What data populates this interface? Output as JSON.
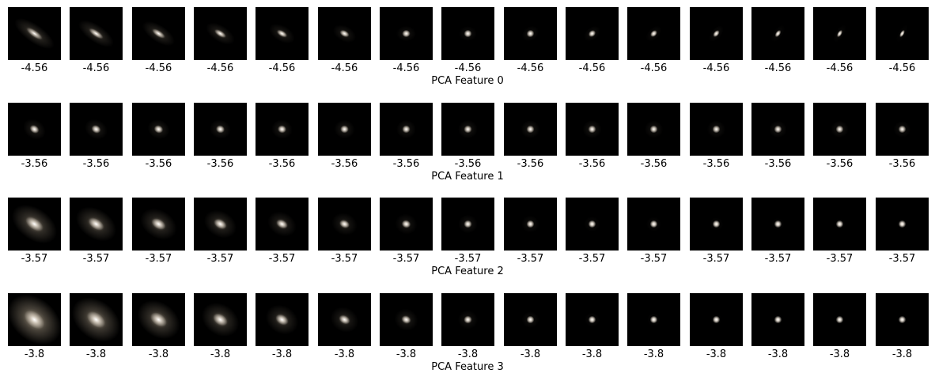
{
  "image": {
    "description_none": true
  },
  "colors": {
    "core": "#fff6ea",
    "halo": "#c9b9a0",
    "background": "#000000"
  },
  "rows": [
    {
      "title": "PCA Feature 0",
      "value": "-4.56",
      "cells": [
        {
          "elong": 2.6,
          "angle": 35,
          "core": 0.55,
          "halo": 0.35,
          "spread": 0.55
        },
        {
          "elong": 2.4,
          "angle": 34,
          "core": 0.6,
          "halo": 0.3,
          "spread": 0.5
        },
        {
          "elong": 2.2,
          "angle": 33,
          "core": 0.62,
          "halo": 0.28,
          "spread": 0.47
        },
        {
          "elong": 2.0,
          "angle": 32,
          "core": 0.65,
          "halo": 0.24,
          "spread": 0.43
        },
        {
          "elong": 1.8,
          "angle": 30,
          "core": 0.68,
          "halo": 0.2,
          "spread": 0.4
        },
        {
          "elong": 1.6,
          "angle": 28,
          "core": 0.7,
          "halo": 0.17,
          "spread": 0.37
        },
        {
          "elong": 1.3,
          "angle": 0,
          "core": 0.72,
          "halo": 0.14,
          "spread": 0.33
        },
        {
          "elong": 1.2,
          "angle": 0,
          "core": 0.74,
          "halo": 0.12,
          "spread": 0.31
        },
        {
          "elong": 1.3,
          "angle": -35,
          "core": 0.74,
          "halo": 0.11,
          "spread": 0.3
        },
        {
          "elong": 1.5,
          "angle": -40,
          "core": 0.75,
          "halo": 0.1,
          "spread": 0.29
        },
        {
          "elong": 1.7,
          "angle": -45,
          "core": 0.76,
          "halo": 0.09,
          "spread": 0.28
        },
        {
          "elong": 1.9,
          "angle": -50,
          "core": 0.77,
          "halo": 0.08,
          "spread": 0.27
        },
        {
          "elong": 2.1,
          "angle": -55,
          "core": 0.78,
          "halo": 0.07,
          "spread": 0.26
        },
        {
          "elong": 2.3,
          "angle": -58,
          "core": 0.79,
          "halo": 0.06,
          "spread": 0.25
        },
        {
          "elong": 2.5,
          "angle": -60,
          "core": 0.8,
          "halo": 0.05,
          "spread": 0.24
        }
      ]
    },
    {
      "title": "PCA Feature 1",
      "value": "-3.56",
      "cells": [
        {
          "elong": 1.3,
          "angle": 35,
          "core": 0.7,
          "halo": 0.2,
          "spread": 0.4
        },
        {
          "elong": 1.25,
          "angle": 30,
          "core": 0.7,
          "halo": 0.2,
          "spread": 0.4
        },
        {
          "elong": 1.2,
          "angle": 25,
          "core": 0.7,
          "halo": 0.19,
          "spread": 0.39
        },
        {
          "elong": 1.15,
          "angle": 20,
          "core": 0.7,
          "halo": 0.18,
          "spread": 0.38
        },
        {
          "elong": 1.1,
          "angle": 15,
          "core": 0.7,
          "halo": 0.18,
          "spread": 0.38
        },
        {
          "elong": 1.1,
          "angle": 10,
          "core": 0.7,
          "halo": 0.17,
          "spread": 0.37
        },
        {
          "elong": 1.05,
          "angle": 0,
          "core": 0.7,
          "halo": 0.16,
          "spread": 0.36
        },
        {
          "elong": 1.05,
          "angle": 0,
          "core": 0.7,
          "halo": 0.16,
          "spread": 0.36
        },
        {
          "elong": 1.05,
          "angle": 0,
          "core": 0.7,
          "halo": 0.15,
          "spread": 0.35
        },
        {
          "elong": 1.05,
          "angle": 0,
          "core": 0.7,
          "halo": 0.15,
          "spread": 0.35
        },
        {
          "elong": 1.05,
          "angle": 0,
          "core": 0.7,
          "halo": 0.14,
          "spread": 0.34
        },
        {
          "elong": 1.05,
          "angle": 0,
          "core": 0.7,
          "halo": 0.14,
          "spread": 0.34
        },
        {
          "elong": 1.05,
          "angle": 0,
          "core": 0.7,
          "halo": 0.13,
          "spread": 0.33
        },
        {
          "elong": 1.05,
          "angle": 0,
          "core": 0.7,
          "halo": 0.13,
          "spread": 0.33
        },
        {
          "elong": 1.05,
          "angle": 0,
          "core": 0.7,
          "halo": 0.12,
          "spread": 0.32
        }
      ]
    },
    {
      "title": "PCA Feature 2",
      "value": "-3.57",
      "cells": [
        {
          "elong": 1.6,
          "angle": 35,
          "core": 0.6,
          "halo": 0.5,
          "spread": 0.75
        },
        {
          "elong": 1.5,
          "angle": 33,
          "core": 0.63,
          "halo": 0.42,
          "spread": 0.68
        },
        {
          "elong": 1.4,
          "angle": 31,
          "core": 0.65,
          "halo": 0.36,
          "spread": 0.62
        },
        {
          "elong": 1.35,
          "angle": 30,
          "core": 0.67,
          "halo": 0.3,
          "spread": 0.56
        },
        {
          "elong": 1.3,
          "angle": 28,
          "core": 0.68,
          "halo": 0.25,
          "spread": 0.5
        },
        {
          "elong": 1.2,
          "angle": 25,
          "core": 0.7,
          "halo": 0.2,
          "spread": 0.45
        },
        {
          "elong": 1.1,
          "angle": 20,
          "core": 0.72,
          "halo": 0.16,
          "spread": 0.4
        },
        {
          "elong": 1.05,
          "angle": 0,
          "core": 0.74,
          "halo": 0.13,
          "spread": 0.36
        },
        {
          "elong": 1.05,
          "angle": 0,
          "core": 0.75,
          "halo": 0.11,
          "spread": 0.33
        },
        {
          "elong": 1.05,
          "angle": 0,
          "core": 0.76,
          "halo": 0.09,
          "spread": 0.3
        },
        {
          "elong": 1.05,
          "angle": 0,
          "core": 0.77,
          "halo": 0.08,
          "spread": 0.28
        },
        {
          "elong": 1.05,
          "angle": 0,
          "core": 0.78,
          "halo": 0.07,
          "spread": 0.26
        },
        {
          "elong": 1.05,
          "angle": 0,
          "core": 0.79,
          "halo": 0.06,
          "spread": 0.24
        },
        {
          "elong": 1.05,
          "angle": 0,
          "core": 0.8,
          "halo": 0.05,
          "spread": 0.22
        },
        {
          "elong": 1.05,
          "angle": 0,
          "core": 0.8,
          "halo": 0.04,
          "spread": 0.21
        }
      ]
    },
    {
      "title": "PCA Feature 3",
      "value": "-3.8",
      "cells": [
        {
          "elong": 1.4,
          "angle": 40,
          "core": 0.55,
          "halo": 0.75,
          "spread": 0.95
        },
        {
          "elong": 1.4,
          "angle": 38,
          "core": 0.58,
          "halo": 0.62,
          "spread": 0.85
        },
        {
          "elong": 1.35,
          "angle": 36,
          "core": 0.6,
          "halo": 0.5,
          "spread": 0.75
        },
        {
          "elong": 1.3,
          "angle": 34,
          "core": 0.63,
          "halo": 0.4,
          "spread": 0.66
        },
        {
          "elong": 1.25,
          "angle": 32,
          "core": 0.66,
          "halo": 0.32,
          "spread": 0.58
        },
        {
          "elong": 1.2,
          "angle": 30,
          "core": 0.68,
          "halo": 0.25,
          "spread": 0.5
        },
        {
          "elong": 1.1,
          "angle": 25,
          "core": 0.7,
          "halo": 0.19,
          "spread": 0.43
        },
        {
          "elong": 1.05,
          "angle": 0,
          "core": 0.72,
          "halo": 0.14,
          "spread": 0.37
        },
        {
          "elong": 1.05,
          "angle": 0,
          "core": 0.74,
          "halo": 0.11,
          "spread": 0.32
        },
        {
          "elong": 1.05,
          "angle": 0,
          "core": 0.76,
          "halo": 0.08,
          "spread": 0.28
        },
        {
          "elong": 1.0,
          "angle": 0,
          "core": 0.78,
          "halo": 0.06,
          "spread": 0.25
        },
        {
          "elong": 1.0,
          "angle": 0,
          "core": 0.79,
          "halo": 0.05,
          "spread": 0.22
        },
        {
          "elong": 1.0,
          "angle": 0,
          "core": 0.8,
          "halo": 0.04,
          "spread": 0.2
        },
        {
          "elong": 1.0,
          "angle": 0,
          "core": 0.8,
          "halo": 0.03,
          "spread": 0.18
        },
        {
          "elong": 1.0,
          "angle": 0,
          "core": 0.8,
          "halo": 0.03,
          "spread": 0.17
        }
      ]
    }
  ]
}
